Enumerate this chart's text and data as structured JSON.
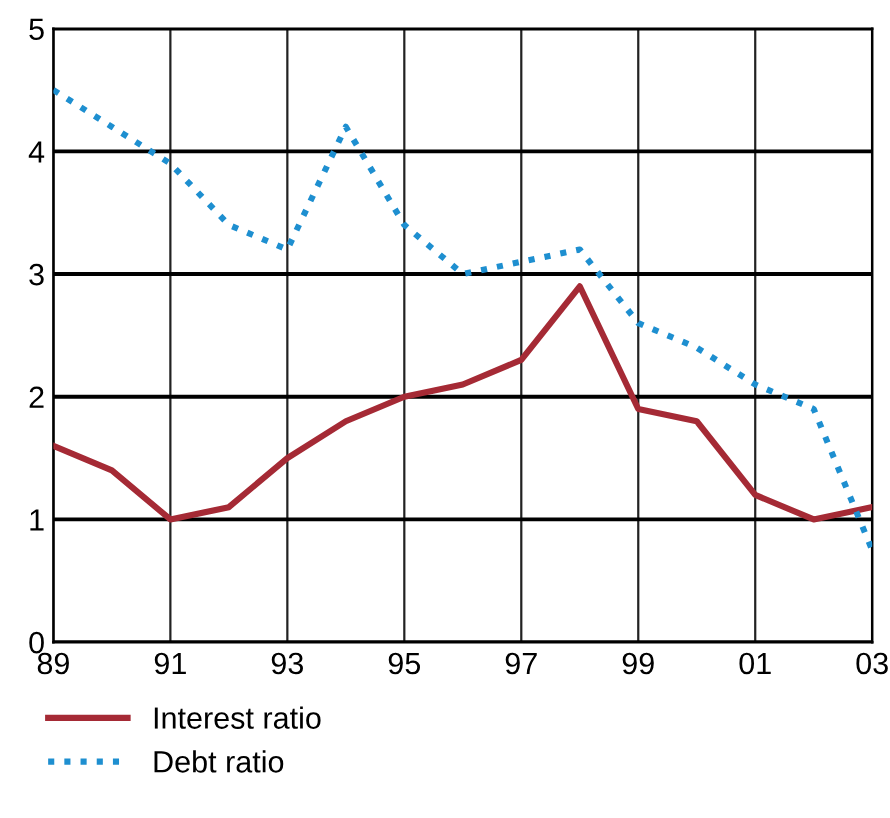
{
  "chart_data": {
    "type": "line",
    "x": [
      1989,
      1990,
      1991,
      1992,
      1993,
      1994,
      1995,
      1996,
      1997,
      1998,
      1999,
      2000,
      2001,
      2002,
      2003
    ],
    "series": [
      {
        "name": "Interest ratio",
        "color": "#a52a35",
        "line_style": "solid",
        "values": [
          1.6,
          1.4,
          1.0,
          1.1,
          1.5,
          1.8,
          2.0,
          2.1,
          2.3,
          2.9,
          1.9,
          1.8,
          1.2,
          1.0,
          1.1
        ]
      },
      {
        "name": "Debt ratio",
        "color": "#1e8fd0",
        "line_style": "dotted",
        "values": [
          4.5,
          4.2,
          3.9,
          3.4,
          3.2,
          4.2,
          3.4,
          3.0,
          3.1,
          3.2,
          2.6,
          2.4,
          2.1,
          1.9,
          0.75
        ]
      }
    ],
    "xlim": [
      1989,
      2003
    ],
    "ylim": [
      0,
      5
    ],
    "xticks": [
      {
        "value": 1989,
        "label": "89"
      },
      {
        "value": 1991,
        "label": "91"
      },
      {
        "value": 1993,
        "label": "93"
      },
      {
        "value": 1995,
        "label": "95"
      },
      {
        "value": 1997,
        "label": "97"
      },
      {
        "value": 1999,
        "label": "99"
      },
      {
        "value": 2001,
        "label": "01"
      },
      {
        "value": 2003,
        "label": "03"
      }
    ],
    "yticks": [
      0,
      1,
      2,
      3,
      4,
      5
    ],
    "grid": true,
    "legend": "bottom left",
    "marker": "none"
  }
}
